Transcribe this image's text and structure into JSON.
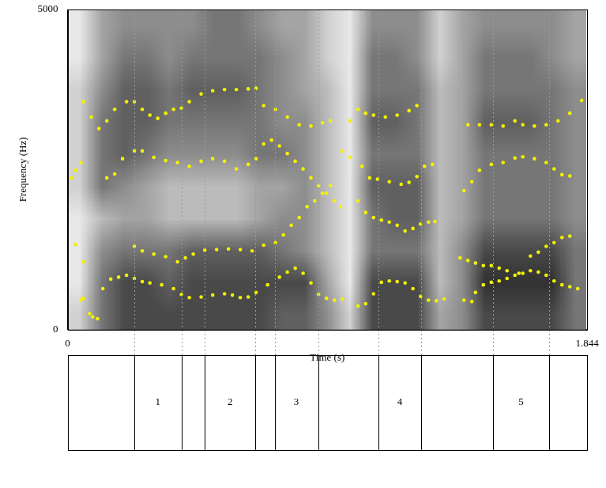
{
  "chart_data": {
    "type": "scatter",
    "x_label": "Time (s)",
    "y_label": "Frequency (Hz)",
    "xlim": [
      0,
      1.844
    ],
    "ylim": [
      0,
      5000
    ],
    "xticks": [
      0,
      1.844
    ],
    "yticks": [
      0,
      5000
    ],
    "grid": false,
    "marker": "circle",
    "series": [
      {
        "color": "#f2f200",
        "x": [
          0.047,
          0.056,
          0.078,
          0.089,
          0.106,
          0.125,
          0.153,
          0.181,
          0.209,
          0.237,
          0.265,
          0.292,
          0.334,
          0.376,
          0.404,
          0.432,
          0.474,
          0.515,
          0.557,
          0.585,
          0.613,
          0.641,
          0.669,
          0.71,
          0.752,
          0.78,
          0.808,
          0.836,
          0.864,
          0.891,
          0.919,
          0.947,
          0.975,
          1.031,
          1.058,
          1.086,
          1.114,
          1.142,
          1.17,
          1.198,
          1.226,
          1.253,
          1.281,
          1.309,
          1.337,
          1.407,
          1.435,
          1.448,
          1.476,
          1.504,
          1.532,
          1.56,
          1.588,
          1.616,
          1.643,
          1.671,
          1.699,
          1.727,
          1.755,
          1.783,
          1.811
        ],
        "values": [
          460,
          490,
          250,
          200,
          170,
          640,
          790,
          820,
          850,
          800,
          750,
          730,
          700,
          640,
          550,
          500,
          510,
          540,
          560,
          540,
          500,
          510,
          580,
          700,
          820,
          900,
          960,
          880,
          730,
          550,
          490,
          460,
          480,
          370,
          405,
          560,
          740,
          760,
          750,
          730,
          640,
          520,
          460,
          450,
          480,
          460,
          440,
          580,
          700,
          740,
          760,
          800,
          850,
          880,
          920,
          900,
          850,
          760,
          700,
          670,
          640
        ]
      },
      {
        "color": "#f2f200",
        "x": [
          0.028,
          0.056,
          0.237,
          0.265,
          0.306,
          0.348,
          0.39,
          0.418,
          0.446,
          0.487,
          0.529,
          0.571,
          0.613,
          0.655,
          0.696,
          0.738,
          0.766,
          0.794,
          0.822,
          0.85,
          0.877,
          0.905,
          0.933,
          1.031,
          1.058,
          1.086,
          1.114,
          1.142,
          1.17,
          1.198,
          1.226,
          1.253,
          1.281,
          1.304,
          1.393,
          1.421,
          1.448,
          1.476,
          1.504,
          1.532,
          1.56,
          1.602,
          1.643,
          1.671,
          1.699,
          1.727,
          1.755,
          1.783
        ],
        "values": [
          1330,
          1060,
          1300,
          1230,
          1180,
          1140,
          1060,
          1120,
          1180,
          1240,
          1250,
          1260,
          1250,
          1230,
          1320,
          1360,
          1480,
          1630,
          1750,
          1920,
          2010,
          2130,
          2250,
          2010,
          1830,
          1750,
          1710,
          1680,
          1630,
          1540,
          1580,
          1650,
          1680,
          1690,
          1120,
          1080,
          1040,
          1000,
          1000,
          960,
          920,
          880,
          1150,
          1210,
          1300,
          1360,
          1440,
          1460
        ]
      },
      {
        "color": "#f2f200",
        "x": [
          0.014,
          0.028,
          0.047,
          0.139,
          0.167,
          0.195,
          0.237,
          0.265,
          0.306,
          0.348,
          0.39,
          0.432,
          0.474,
          0.515,
          0.557,
          0.599,
          0.641,
          0.669,
          0.696,
          0.724,
          0.752,
          0.78,
          0.808,
          0.836,
          0.864,
          0.891,
          0.919,
          0.947,
          0.969,
          0.975,
          1.003,
          1.045,
          1.072,
          1.1,
          1.142,
          1.184,
          1.212,
          1.24,
          1.267,
          1.295,
          1.407,
          1.435,
          1.462,
          1.504,
          1.546,
          1.588,
          1.616,
          1.657,
          1.699,
          1.727,
          1.755,
          1.783
        ],
        "values": [
          2370,
          2490,
          2610,
          2370,
          2430,
          2670,
          2790,
          2790,
          2690,
          2640,
          2610,
          2550,
          2630,
          2670,
          2630,
          2510,
          2580,
          2670,
          2900,
          2960,
          2870,
          2750,
          2630,
          2510,
          2370,
          2250,
          2130,
          2010,
          1920,
          2790,
          2690,
          2550,
          2370,
          2350,
          2310,
          2270,
          2300,
          2390,
          2550,
          2580,
          2170,
          2310,
          2490,
          2580,
          2610,
          2680,
          2700,
          2670,
          2610,
          2510,
          2420,
          2400
        ]
      },
      {
        "color": "#f2f200",
        "x": [
          0.056,
          0.084,
          0.111,
          0.139,
          0.167,
          0.209,
          0.237,
          0.265,
          0.292,
          0.32,
          0.348,
          0.376,
          0.404,
          0.432,
          0.474,
          0.515,
          0.557,
          0.599,
          0.641,
          0.669,
          0.696,
          0.738,
          0.78,
          0.822,
          0.864,
          0.905,
          0.933,
          1.003,
          1.031,
          1.058,
          1.086,
          1.128,
          1.17,
          1.212,
          1.24,
          1.421,
          1.462,
          1.504,
          1.546,
          1.588,
          1.616,
          1.657,
          1.699,
          1.741,
          1.783,
          1.825
        ],
        "values": [
          3560,
          3320,
          3140,
          3260,
          3440,
          3560,
          3560,
          3440,
          3350,
          3300,
          3380,
          3440,
          3460,
          3560,
          3680,
          3730,
          3750,
          3750,
          3760,
          3770,
          3500,
          3440,
          3320,
          3200,
          3180,
          3230,
          3260,
          3260,
          3440,
          3380,
          3350,
          3320,
          3350,
          3420,
          3500,
          3200,
          3200,
          3200,
          3180,
          3260,
          3200,
          3180,
          3200,
          3260,
          3380,
          3580
        ]
      }
    ],
    "spectrogram": {
      "time_edges": [
        0,
        0.08,
        0.16,
        0.24,
        0.32,
        0.4,
        0.48,
        0.56,
        0.64,
        0.72,
        0.8,
        0.88,
        0.96,
        1.04,
        1.12,
        1.2,
        1.28,
        1.36,
        1.44,
        1.52,
        1.6,
        1.68,
        1.76,
        1.84
      ],
      "freq_edges": [
        0,
        500,
        1000,
        1500,
        2000,
        2500,
        3000,
        3500,
        4000,
        4500,
        5000
      ],
      "cell_range": [
        0,
        9
      ],
      "cells": [
        [
          2,
          6,
          8,
          8,
          8,
          8,
          8,
          8,
          8,
          7,
          7,
          5,
          2,
          8,
          8,
          8,
          4,
          5,
          8,
          8,
          8,
          8,
          6
        ],
        [
          1,
          6,
          8,
          8,
          7,
          8,
          8,
          8,
          8,
          8,
          8,
          4,
          1,
          8,
          8,
          8,
          3,
          5,
          9,
          9,
          9,
          9,
          6
        ],
        [
          1,
          5,
          6,
          6,
          6,
          7,
          7,
          7,
          7,
          6,
          5,
          3,
          1,
          6,
          6,
          6,
          3,
          5,
          8,
          8,
          8,
          8,
          6
        ],
        [
          1,
          3,
          4,
          4,
          3,
          3,
          3,
          3,
          4,
          5,
          5,
          3,
          1,
          6,
          7,
          7,
          3,
          4,
          6,
          6,
          6,
          6,
          5
        ],
        [
          2,
          6,
          5,
          4,
          3,
          3,
          3,
          3,
          4,
          4,
          5,
          3,
          1,
          7,
          7,
          7,
          3,
          4,
          6,
          6,
          6,
          6,
          5
        ],
        [
          2,
          6,
          7,
          6,
          5,
          5,
          5,
          5,
          6,
          6,
          5,
          3,
          1,
          6,
          6,
          6,
          3,
          4,
          6,
          6,
          6,
          6,
          5
        ],
        [
          2,
          6,
          7,
          7,
          6,
          6,
          6,
          6,
          6,
          5,
          5,
          3,
          1,
          7,
          7,
          6,
          3,
          4,
          7,
          7,
          7,
          6,
          5
        ],
        [
          2,
          5,
          7,
          7,
          6,
          7,
          7,
          7,
          6,
          5,
          4,
          3,
          1,
          6,
          6,
          6,
          3,
          4,
          6,
          6,
          6,
          6,
          5
        ],
        [
          1,
          4,
          6,
          6,
          5,
          6,
          6,
          6,
          6,
          5,
          4,
          2,
          1,
          6,
          6,
          5,
          2,
          4,
          6,
          6,
          6,
          5,
          4
        ],
        [
          1,
          4,
          5,
          5,
          5,
          5,
          6,
          6,
          5,
          4,
          4,
          2,
          1,
          5,
          5,
          5,
          2,
          4,
          5,
          5,
          5,
          5,
          4
        ]
      ]
    },
    "tier": {
      "boundaries": [
        0.237,
        0.404,
        0.487,
        0.666,
        0.735,
        0.889,
        1.103,
        1.256,
        1.51,
        1.71
      ],
      "labels": [
        null,
        "1",
        null,
        "2",
        null,
        "3",
        null,
        "4",
        null,
        "5",
        null
      ]
    }
  }
}
